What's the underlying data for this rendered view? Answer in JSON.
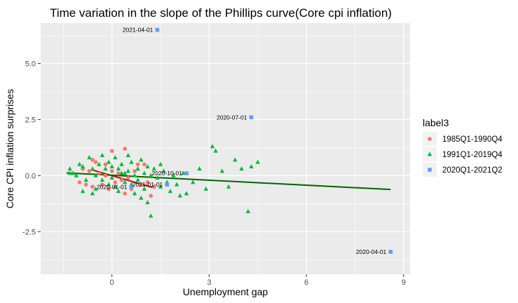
{
  "chart_data": {
    "type": "scatter",
    "title": "Time variation in the slope of the Phillips curve(Core cpi inflation)",
    "xlabel": "Unemployment gap",
    "ylabel": "Core CPI inflation surprises",
    "xlim": [
      -2.2,
      9.2
    ],
    "ylim": [
      -4.4,
      6.8
    ],
    "x_ticks": [
      0,
      3,
      6,
      9
    ],
    "x_tick_labels": [
      "0",
      "3",
      "6",
      "9"
    ],
    "y_ticks": [
      -2.5,
      0,
      2.5,
      5
    ],
    "y_tick_labels": [
      "-2.5",
      "0.0",
      "2.5",
      "5.0"
    ],
    "grid": true,
    "legend": {
      "title": "label3",
      "position": "right",
      "entries": [
        "1985Q1-1990Q4",
        "1991Q1-2019Q4",
        "2020Q1-2021Q2"
      ]
    },
    "colors": {
      "1985Q1-1990Q4": "#F8766D",
      "1991Q1-2019Q4": "#00BA38",
      "2020Q1-2021Q2": "#619CFF",
      "fit_1985": "#CC0000",
      "fit_1991": "#006400",
      "panel": "#EBEBEB"
    },
    "series": [
      {
        "name": "1985Q1-1990Q4",
        "marker": "circle",
        "points": [
          [
            -0.6,
            0.7
          ],
          [
            -0.5,
            0.6
          ],
          [
            -0.2,
            0.5
          ],
          [
            0,
            1.1
          ],
          [
            0.4,
            1.2
          ],
          [
            0.8,
            0.5
          ],
          [
            1.0,
            0.5
          ],
          [
            -0.9,
            0.3
          ],
          [
            -0.7,
            0.2
          ],
          [
            -0.4,
            0.1
          ],
          [
            -0.2,
            0.0
          ],
          [
            0.0,
            0.2
          ],
          [
            0.2,
            0.1
          ],
          [
            0.5,
            -0.1
          ],
          [
            -1.0,
            -0.3
          ],
          [
            -0.8,
            -0.4
          ],
          [
            -0.6,
            -0.5
          ],
          [
            -0.3,
            -0.4
          ],
          [
            0.1,
            -0.3
          ],
          [
            0.4,
            -0.8
          ],
          [
            0.6,
            -0.6
          ],
          [
            0.9,
            -0.4
          ],
          [
            1.1,
            -0.3
          ],
          [
            1.2,
            -0.9
          ],
          [
            0.3,
            -0.2
          ],
          [
            -0.1,
            -0.6
          ],
          [
            1.3,
            -0.5
          ],
          [
            0.7,
            0.2
          ]
        ]
      },
      {
        "name": "1991Q1-2019Q4",
        "marker": "triangle",
        "points": [
          [
            -1.3,
            0.3
          ],
          [
            -1.2,
            0.1
          ],
          [
            -1.1,
            0.0
          ],
          [
            -1.0,
            0.5
          ],
          [
            -0.9,
            0.4
          ],
          [
            -0.8,
            -0.2
          ],
          [
            -0.7,
            0.8
          ],
          [
            -0.6,
            0.3
          ],
          [
            -0.5,
            0.0
          ],
          [
            -0.5,
            -0.6
          ],
          [
            -0.4,
            0.5
          ],
          [
            -0.3,
            0.9
          ],
          [
            -0.3,
            -0.2
          ],
          [
            -0.2,
            0.3
          ],
          [
            -0.1,
            0.6
          ],
          [
            -0.1,
            -0.4
          ],
          [
            0.0,
            0.4
          ],
          [
            0.0,
            -0.1
          ],
          [
            0.1,
            0.8
          ],
          [
            0.1,
            -0.5
          ],
          [
            0.2,
            0.3
          ],
          [
            0.2,
            -0.7
          ],
          [
            0.3,
            0.1
          ],
          [
            0.3,
            0.5
          ],
          [
            0.4,
            -0.3
          ],
          [
            0.5,
            0.9
          ],
          [
            0.5,
            0.2
          ],
          [
            0.6,
            -0.4
          ],
          [
            0.6,
            0.6
          ],
          [
            0.7,
            0.0
          ],
          [
            0.7,
            -0.8
          ],
          [
            0.8,
            0.3
          ],
          [
            0.8,
            -0.2
          ],
          [
            0.9,
            0.7
          ],
          [
            1.0,
            0.1
          ],
          [
            1.0,
            -0.6
          ],
          [
            1.1,
            0.4
          ],
          [
            1.1,
            -1.2
          ],
          [
            1.2,
            0.0
          ],
          [
            1.2,
            -1.8
          ],
          [
            1.3,
            0.3
          ],
          [
            1.4,
            -0.1
          ],
          [
            1.5,
            -0.5
          ],
          [
            1.6,
            0.2
          ],
          [
            1.7,
            -0.3
          ],
          [
            1.8,
            -0.7
          ],
          [
            1.9,
            0.0
          ],
          [
            2.0,
            -0.4
          ],
          [
            2.2,
            0.1
          ],
          [
            2.3,
            -0.8
          ],
          [
            2.5,
            -0.3
          ],
          [
            2.7,
            0.3
          ],
          [
            2.9,
            -0.6
          ],
          [
            3.1,
            1.3
          ],
          [
            3.2,
            1.1
          ],
          [
            3.4,
            0.2
          ],
          [
            3.6,
            -0.5
          ],
          [
            3.8,
            0.7
          ],
          [
            4.0,
            0.3
          ],
          [
            4.2,
            -1.6
          ],
          [
            4.3,
            0.4
          ],
          [
            4.5,
            0.6
          ],
          [
            -1.3,
            0.1
          ],
          [
            -0.9,
            -0.7
          ],
          [
            -0.6,
            -0.8
          ],
          [
            0.4,
            0.1
          ],
          [
            0.9,
            -1.0
          ],
          [
            1.5,
            0.5
          ],
          [
            2.1,
            -0.9
          ]
        ]
      },
      {
        "name": "2020Q1-2021Q2",
        "marker": "square",
        "points": [
          [
            1.4,
            6.5
          ],
          [
            4.3,
            2.6
          ],
          [
            8.6,
            -3.4
          ],
          [
            1.7,
            -0.4
          ],
          [
            2.3,
            0.1
          ],
          [
            0.6,
            -0.5
          ]
        ]
      }
    ],
    "fit_lines": [
      {
        "name": "1985Q1-1990Q4",
        "from": [
          -0.6,
          0.25
        ],
        "to": [
          1.3,
          -0.55
        ]
      },
      {
        "name": "1991Q1-2019Q4",
        "from": [
          -1.4,
          0.12
        ],
        "to": [
          8.6,
          -0.62
        ]
      }
    ],
    "annotations": [
      {
        "text": "2021-04-01",
        "x": 1.4,
        "y": 6.5
      },
      {
        "text": "2020-07-01",
        "x": 4.3,
        "y": 2.6
      },
      {
        "text": "2020-04-01",
        "x": 8.6,
        "y": -3.4
      },
      {
        "text": "2020-10-01",
        "x": 2.3,
        "y": 0.1
      },
      {
        "text": "2021-01-01",
        "x": 1.7,
        "y": -0.4
      },
      {
        "text": "2020-01-01",
        "x": 0.6,
        "y": -0.5
      }
    ]
  }
}
